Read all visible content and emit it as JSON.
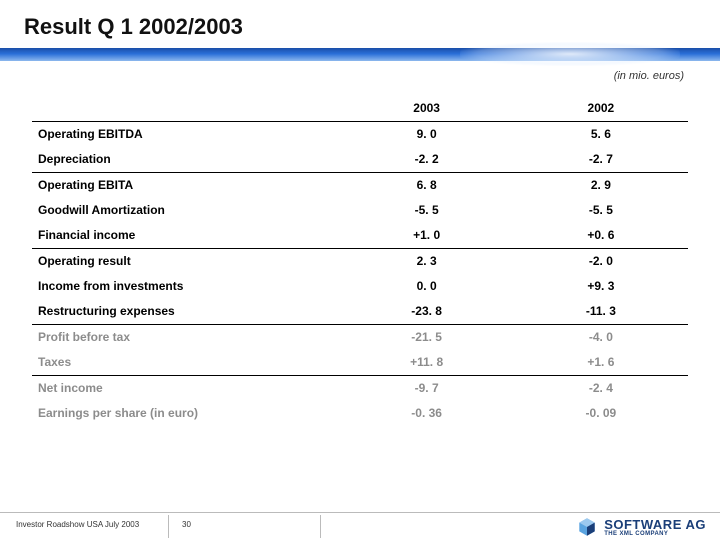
{
  "title": "Result Q 1 2002/2003",
  "unit": "(in mio. euros)",
  "colors": {
    "band_from": "#1a4ea8",
    "band_to": "#8db8ee",
    "grey": "#8c8c8c",
    "logo_blue": "#1a3e78",
    "logo_cyan": "#5aa4e0"
  },
  "table": {
    "columns": [
      "",
      "2003",
      "2002"
    ],
    "rows": [
      {
        "label": "Operating EBITDA",
        "v1": "9. 0",
        "v2": "5. 6",
        "sum": false,
        "grey": false
      },
      {
        "label": "Depreciation",
        "v1": "-2. 2",
        "v2": "-2. 7",
        "sum": false,
        "grey": false
      },
      {
        "label": "Operating EBITA",
        "v1": "6. 8",
        "v2": "2. 9",
        "sum": true,
        "grey": false
      },
      {
        "label": "Goodwill Amortization",
        "v1": "-5. 5",
        "v2": "-5. 5",
        "sum": false,
        "grey": false
      },
      {
        "label": "Financial income",
        "v1": "+1. 0",
        "v2": "+0. 6",
        "sum": false,
        "grey": false
      },
      {
        "label": "Operating result",
        "v1": "2. 3",
        "v2": "-2. 0",
        "sum": true,
        "grey": false
      },
      {
        "label": "Income from investments",
        "v1": "0. 0",
        "v2": "+9. 3",
        "sum": false,
        "grey": false
      },
      {
        "label": "Restructuring expenses",
        "v1": "-23. 8",
        "v2": "-11. 3",
        "sum": false,
        "grey": false
      },
      {
        "label": "Profit before tax",
        "v1": "-21. 5",
        "v2": "-4. 0",
        "sum": true,
        "grey": true
      },
      {
        "label": "Taxes",
        "v1": "+11. 8",
        "v2": "+1. 6",
        "sum": false,
        "grey": true
      },
      {
        "label": "Net income",
        "v1": "-9. 7",
        "v2": "-2. 4",
        "sum": true,
        "grey": true
      },
      {
        "label": "Earnings per share (in euro)",
        "v1": "-0. 36",
        "v2": "-0. 09",
        "sum": false,
        "grey": true
      }
    ]
  },
  "footer": {
    "text": "Investor Roadshow USA July 2003",
    "page": "30"
  },
  "logo": {
    "line1": "SOFTWARE AG",
    "line2": "THE XML COMPANY"
  }
}
